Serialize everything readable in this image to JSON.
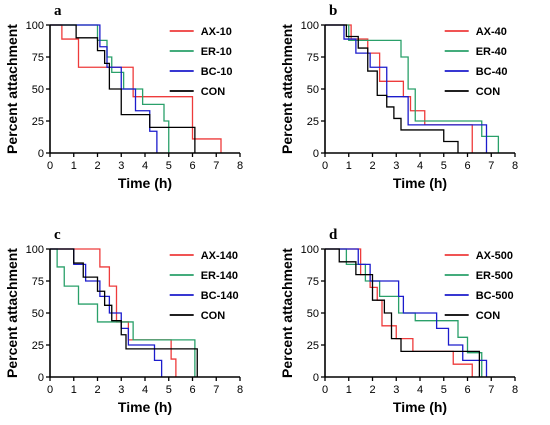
{
  "chart_data": [
    {
      "type": "line",
      "panel_label": "a",
      "xlabel": "Time (h)",
      "ylabel": "Percent attachment",
      "xlim": [
        0,
        8
      ],
      "ylim": [
        0,
        100
      ],
      "xticks": [
        0,
        1,
        2,
        3,
        4,
        5,
        6,
        7,
        8
      ],
      "yticks": [
        0,
        25,
        50,
        75,
        100
      ],
      "legend_position": "top-right",
      "series": [
        {
          "name": "AX-10",
          "color": "#ee3b3b",
          "x": [
            0,
            0.5,
            1.2,
            2.8,
            3.5,
            5.7,
            6.0,
            7.2
          ],
          "y": [
            100,
            89,
            67,
            67,
            44,
            44,
            11,
            0
          ]
        },
        {
          "name": "ER-10",
          "color": "#2aa06a",
          "x": [
            0,
            1.7,
            2.0,
            2.4,
            2.6,
            3.1,
            3.9,
            4.8,
            5.0
          ],
          "y": [
            100,
            100,
            88,
            75,
            63,
            50,
            38,
            25,
            0
          ]
        },
        {
          "name": "BC-10",
          "color": "#1c1ccc",
          "x": [
            0,
            1.5,
            2.1,
            2.4,
            3.0,
            3.6,
            4.2,
            4.5
          ],
          "y": [
            100,
            100,
            83,
            67,
            50,
            33,
            17,
            0
          ]
        },
        {
          "name": "CON",
          "color": "#000000",
          "x": [
            0,
            1.1,
            2.0,
            2.3,
            2.5,
            3.0,
            4.2,
            5.1,
            6.1
          ],
          "y": [
            100,
            90,
            80,
            70,
            50,
            30,
            20,
            20,
            0
          ]
        }
      ]
    },
    {
      "type": "line",
      "panel_label": "b",
      "xlabel": "Time (h)",
      "ylabel": "Percent attachment",
      "xlim": [
        0,
        8
      ],
      "ylim": [
        0,
        100
      ],
      "xticks": [
        0,
        1,
        2,
        3,
        4,
        5,
        6,
        7,
        8
      ],
      "yticks": [
        0,
        25,
        50,
        75,
        100
      ],
      "legend_position": "top-right",
      "series": [
        {
          "name": "AX-40",
          "color": "#ee3b3b",
          "x": [
            0,
            1.1,
            1.8,
            2.3,
            2.9,
            3.3,
            3.6,
            4.2,
            6.2
          ],
          "y": [
            100,
            89,
            78,
            56,
            56,
            44,
            33,
            22,
            0
          ]
        },
        {
          "name": "ER-40",
          "color": "#2aa06a",
          "x": [
            0,
            1.0,
            1.6,
            2.8,
            3.2,
            3.5,
            3.8,
            6.6,
            7.3
          ],
          "y": [
            100,
            88,
            88,
            88,
            75,
            50,
            25,
            13,
            0
          ]
        },
        {
          "name": "BC-40",
          "color": "#1c1ccc",
          "x": [
            0,
            0.8,
            1.3,
            1.9,
            2.6,
            3.1,
            3.5,
            5.5,
            6.8
          ],
          "y": [
            100,
            89,
            78,
            67,
            44,
            44,
            22,
            22,
            0
          ]
        },
        {
          "name": "CON",
          "color": "#000000",
          "x": [
            0,
            0.9,
            1.4,
            1.8,
            2.2,
            2.6,
            2.9,
            3.2,
            5.0,
            5.6
          ],
          "y": [
            100,
            91,
            82,
            64,
            45,
            36,
            27,
            18,
            9,
            0
          ]
        }
      ]
    },
    {
      "type": "line",
      "panel_label": "c",
      "xlabel": "Time (h)",
      "ylabel": "Percent attachment",
      "xlim": [
        0,
        8
      ],
      "ylim": [
        0,
        100
      ],
      "xticks": [
        0,
        1,
        2,
        3,
        4,
        5,
        6,
        7,
        8
      ],
      "yticks": [
        0,
        25,
        50,
        75,
        100
      ],
      "legend_position": "top-right",
      "series": [
        {
          "name": "AX-140",
          "color": "#ee3b3b",
          "x": [
            0,
            1.9,
            2.1,
            2.5,
            2.8,
            3.3,
            5.1,
            5.3
          ],
          "y": [
            100,
            100,
            86,
            71,
            43,
            29,
            14,
            0
          ]
        },
        {
          "name": "ER-140",
          "color": "#2aa06a",
          "x": [
            0,
            0.3,
            0.6,
            1.2,
            2.0,
            2.7,
            3.5,
            6.1
          ],
          "y": [
            100,
            86,
            71,
            57,
            43,
            43,
            29,
            0
          ]
        },
        {
          "name": "BC-140",
          "color": "#1c1ccc",
          "x": [
            0,
            1.0,
            1.5,
            2.1,
            2.5,
            3.0,
            3.3,
            4.4,
            4.7
          ],
          "y": [
            100,
            88,
            75,
            63,
            50,
            38,
            25,
            13,
            0
          ]
        },
        {
          "name": "CON",
          "color": "#000000",
          "x": [
            0,
            1.0,
            1.4,
            2.0,
            2.3,
            2.6,
            3.0,
            3.2,
            6.2
          ],
          "y": [
            100,
            89,
            78,
            67,
            56,
            44,
            33,
            22,
            0
          ]
        }
      ]
    },
    {
      "type": "line",
      "panel_label": "d",
      "xlabel": "Time (h)",
      "ylabel": "Percent attachment",
      "xlim": [
        0,
        8
      ],
      "ylim": [
        0,
        100
      ],
      "xticks": [
        0,
        1,
        2,
        3,
        4,
        5,
        6,
        7,
        8
      ],
      "yticks": [
        0,
        25,
        50,
        75,
        100
      ],
      "legend_position": "top-right",
      "series": [
        {
          "name": "AX-500",
          "color": "#ee3b3b",
          "x": [
            0,
            1.5,
            1.9,
            2.2,
            2.4,
            3.0,
            3.7,
            4.3,
            5.4,
            5.7,
            6.2
          ],
          "y": [
            100,
            80,
            70,
            60,
            40,
            30,
            20,
            20,
            10,
            10,
            0
          ]
        },
        {
          "name": "ER-500",
          "color": "#2aa06a",
          "x": [
            0,
            0.9,
            1.7,
            2.3,
            3.1,
            3.8,
            5.2,
            5.6,
            6.0,
            6.6
          ],
          "y": [
            100,
            88,
            75,
            63,
            50,
            44,
            44,
            31,
            19,
            0
          ]
        },
        {
          "name": "BC-500",
          "color": "#1c1ccc",
          "x": [
            0,
            1.4,
            1.9,
            2.3,
            3.1,
            3.3,
            4.7,
            5.2,
            5.8,
            6.8
          ],
          "y": [
            100,
            88,
            75,
            75,
            63,
            50,
            38,
            25,
            13,
            0
          ]
        },
        {
          "name": "CON",
          "color": "#000000",
          "x": [
            0,
            0.6,
            1.3,
            2.0,
            2.5,
            2.8,
            3.2,
            4.0,
            6.5
          ],
          "y": [
            100,
            90,
            80,
            60,
            50,
            30,
            20,
            20,
            0
          ]
        }
      ]
    }
  ]
}
